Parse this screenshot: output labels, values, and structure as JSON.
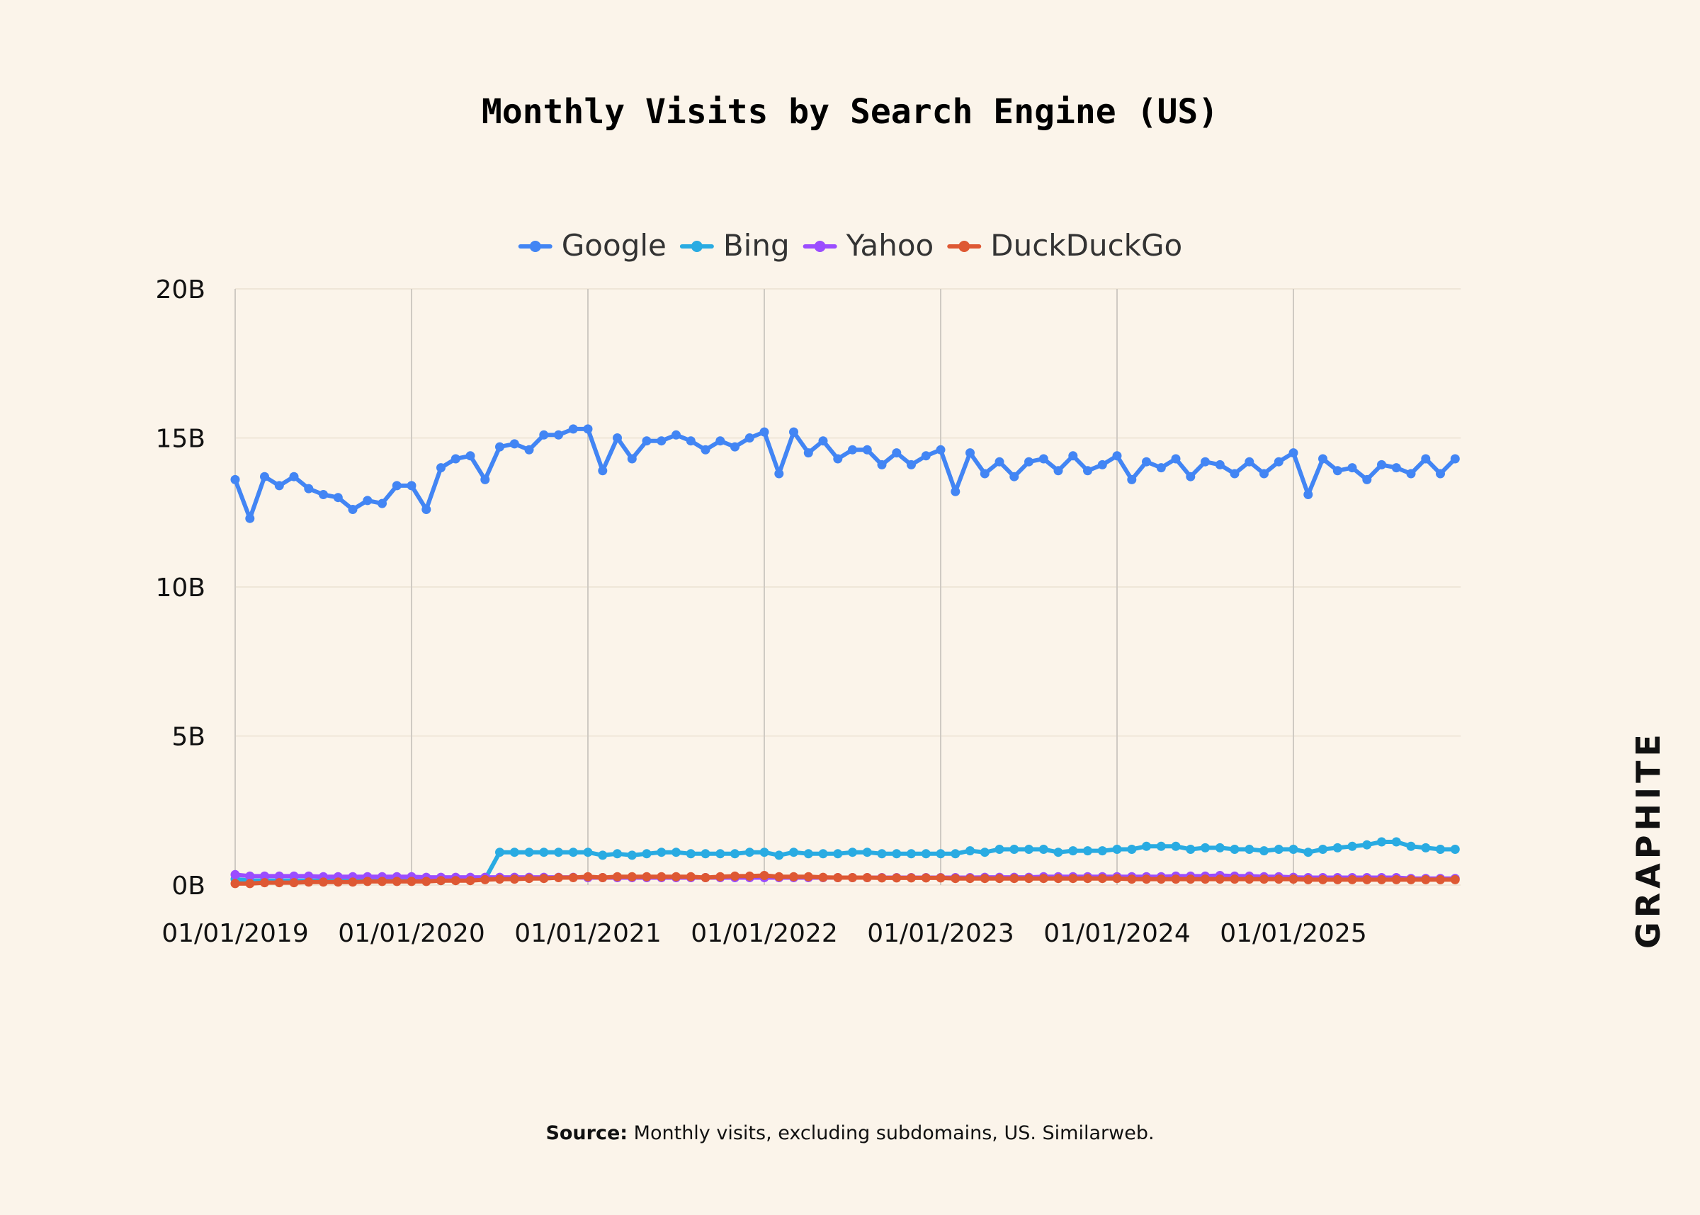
{
  "chart_data": {
    "type": "line",
    "title": "Monthly Visits by Search Engine (US)",
    "xlabel": "",
    "ylabel": "",
    "y_unit": "B",
    "ylim": [
      0,
      20
    ],
    "y_ticks": [
      0,
      5,
      10,
      15,
      20
    ],
    "y_tick_labels": [
      "0B",
      "5B",
      "10B",
      "15B",
      "20B"
    ],
    "x_start": "2019-01",
    "x_ticks": [
      "01/01/2019",
      "01/01/2020",
      "01/01/2021",
      "01/01/2022",
      "01/01/2023",
      "01/01/2024",
      "01/01/2025"
    ],
    "grid": "vertical lines at yearly ticks, faint horizontal lines",
    "legend_position": "top-center",
    "series": [
      {
        "name": "Google",
        "color": "#4285f4",
        "values": [
          13.6,
          12.3,
          13.7,
          13.4,
          13.7,
          13.3,
          13.1,
          13.0,
          12.6,
          12.9,
          12.8,
          13.4,
          13.4,
          12.6,
          14.0,
          14.3,
          14.4,
          13.6,
          14.7,
          14.8,
          14.6,
          15.1,
          15.1,
          15.3,
          15.3,
          13.9,
          15.0,
          14.3,
          14.9,
          14.9,
          15.1,
          14.9,
          14.6,
          14.9,
          14.7,
          15.0,
          15.2,
          13.8,
          15.2,
          14.5,
          14.9,
          14.3,
          14.6,
          14.6,
          14.1,
          14.5,
          14.1,
          14.4,
          14.6,
          13.2,
          14.5,
          13.8,
          14.2,
          13.7,
          14.2,
          14.3,
          13.9,
          14.4,
          13.9,
          14.1,
          14.4,
          13.6,
          14.2,
          14.0,
          14.3,
          13.7,
          14.2,
          14.1,
          13.8,
          14.2,
          13.8,
          14.2,
          14.5,
          13.1,
          14.3,
          13.9,
          14.0,
          13.6,
          14.1,
          14.0,
          13.8,
          14.3,
          13.8,
          14.3
        ]
      },
      {
        "name": "Bing",
        "color": "#29abe2",
        "values": [
          0.2,
          0.15,
          0.15,
          0.15,
          0.15,
          0.15,
          0.15,
          0.15,
          0.15,
          0.15,
          0.15,
          0.15,
          0.15,
          0.15,
          0.15,
          0.2,
          0.2,
          0.2,
          1.1,
          1.1,
          1.1,
          1.1,
          1.1,
          1.1,
          1.1,
          1.0,
          1.05,
          1.0,
          1.05,
          1.1,
          1.1,
          1.05,
          1.05,
          1.05,
          1.05,
          1.1,
          1.1,
          1.0,
          1.1,
          1.05,
          1.05,
          1.05,
          1.1,
          1.1,
          1.05,
          1.05,
          1.05,
          1.05,
          1.05,
          1.05,
          1.15,
          1.1,
          1.2,
          1.2,
          1.2,
          1.2,
          1.1,
          1.15,
          1.15,
          1.15,
          1.2,
          1.2,
          1.3,
          1.3,
          1.3,
          1.2,
          1.25,
          1.25,
          1.2,
          1.2,
          1.15,
          1.2,
          1.2,
          1.1,
          1.2,
          1.25,
          1.3,
          1.35,
          1.45,
          1.45,
          1.3,
          1.25,
          1.2,
          1.2
        ]
      },
      {
        "name": "Yahoo",
        "color": "#9b4dff",
        "values": [
          0.35,
          0.3,
          0.3,
          0.3,
          0.3,
          0.3,
          0.28,
          0.28,
          0.28,
          0.28,
          0.28,
          0.28,
          0.28,
          0.26,
          0.26,
          0.26,
          0.26,
          0.26,
          0.26,
          0.26,
          0.26,
          0.26,
          0.26,
          0.26,
          0.25,
          0.25,
          0.25,
          0.25,
          0.25,
          0.25,
          0.25,
          0.25,
          0.25,
          0.25,
          0.25,
          0.25,
          0.25,
          0.25,
          0.25,
          0.25,
          0.25,
          0.25,
          0.25,
          0.25,
          0.25,
          0.25,
          0.25,
          0.25,
          0.25,
          0.25,
          0.25,
          0.26,
          0.26,
          0.26,
          0.26,
          0.28,
          0.28,
          0.28,
          0.28,
          0.28,
          0.28,
          0.28,
          0.28,
          0.28,
          0.3,
          0.3,
          0.3,
          0.32,
          0.3,
          0.3,
          0.28,
          0.28,
          0.26,
          0.25,
          0.25,
          0.25,
          0.25,
          0.25,
          0.25,
          0.25,
          0.22,
          0.22,
          0.22,
          0.22
        ]
      },
      {
        "name": "DuckDuckGo",
        "color": "#de5833",
        "values": [
          0.05,
          0.05,
          0.08,
          0.08,
          0.08,
          0.1,
          0.1,
          0.1,
          0.1,
          0.12,
          0.12,
          0.12,
          0.12,
          0.12,
          0.15,
          0.15,
          0.15,
          0.18,
          0.2,
          0.2,
          0.22,
          0.22,
          0.25,
          0.25,
          0.28,
          0.25,
          0.28,
          0.28,
          0.28,
          0.28,
          0.28,
          0.28,
          0.25,
          0.28,
          0.3,
          0.3,
          0.32,
          0.28,
          0.28,
          0.28,
          0.26,
          0.25,
          0.25,
          0.25,
          0.24,
          0.24,
          0.24,
          0.24,
          0.24,
          0.22,
          0.22,
          0.22,
          0.22,
          0.22,
          0.22,
          0.22,
          0.22,
          0.22,
          0.22,
          0.22,
          0.22,
          0.2,
          0.2,
          0.2,
          0.2,
          0.2,
          0.2,
          0.2,
          0.2,
          0.2,
          0.2,
          0.2,
          0.2,
          0.18,
          0.18,
          0.18,
          0.18,
          0.18,
          0.18,
          0.18,
          0.18,
          0.18,
          0.18,
          0.18
        ]
      }
    ]
  },
  "source": {
    "label": "Source:",
    "text": " Monthly visits, excluding subdomains, US. Similarweb."
  },
  "brand": {
    "logo_text": "GRAPHITE"
  }
}
